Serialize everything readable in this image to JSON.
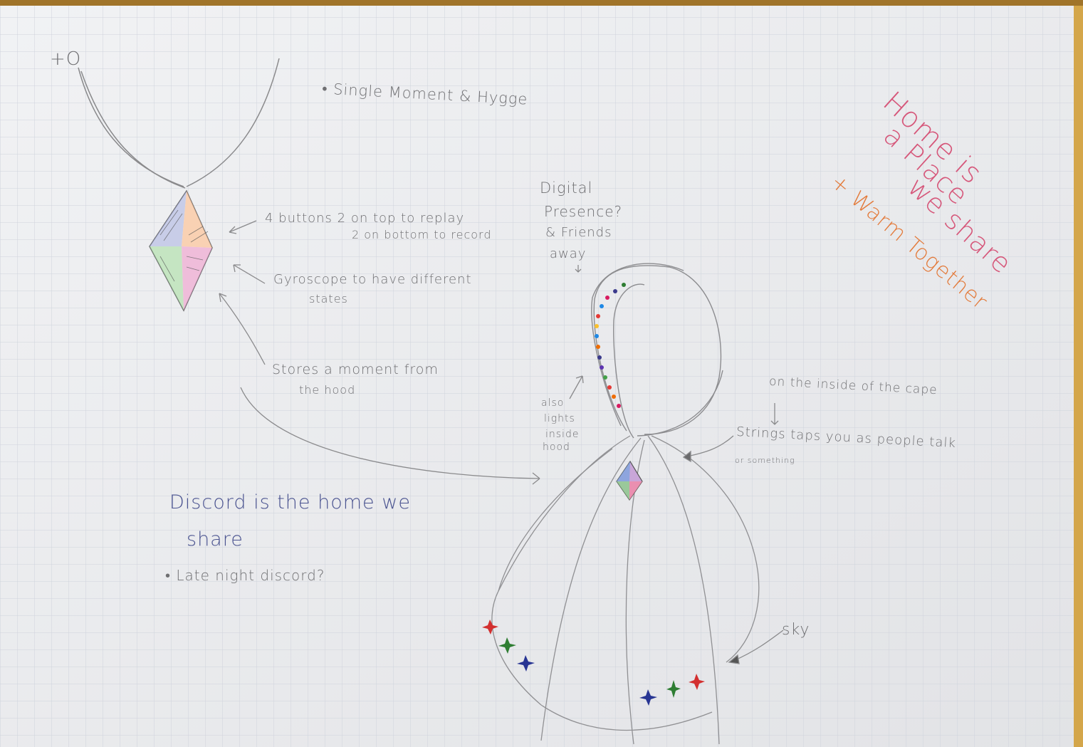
{
  "pendant_notes": {
    "top_left": "+O",
    "title": "• Single Moment & Hygge",
    "buttons_line1": "4 buttons 2 on top to replay",
    "buttons_line2": "2 on bottom to record",
    "gyro_line1": "Gyroscope to have different",
    "gyro_line2": "states",
    "stores_line1": "Stores a moment from",
    "stores_line2": "the hood"
  },
  "hood_notes": {
    "digital_1": "Digital",
    "digital_2": "Presence?",
    "digital_3": "& Friends",
    "digital_4": "away",
    "lights_1": "also",
    "lights_2": "lights",
    "lights_3": "inside",
    "lights_4": "hood",
    "inside_cape": "on the inside of the cape",
    "strings_1": "Strings taps you as people talk",
    "strings_2": "or something",
    "sky": "sky"
  },
  "discord_notes": {
    "line1": "Discord is the home we",
    "line2": "share",
    "bullet": "• Late night discord?"
  },
  "slogan": {
    "line1": "Home is",
    "line2": "a Place",
    "line3": "we share",
    "line4": "+ Warm Together"
  },
  "colors": {
    "pencil": "#7a7a7c",
    "grid": "#c9cdd6",
    "paper": "#eeeff1",
    "slogan_pink": "#d6577a",
    "slogan_orange": "#e37a3a",
    "discord_blue": "#4a5390",
    "lights": [
      "#2e7d32",
      "#3a3a8c",
      "#1e88e5",
      "#e53935",
      "#ef6c00",
      "#fbc02d",
      "#43a047",
      "#5e35b1"
    ]
  }
}
